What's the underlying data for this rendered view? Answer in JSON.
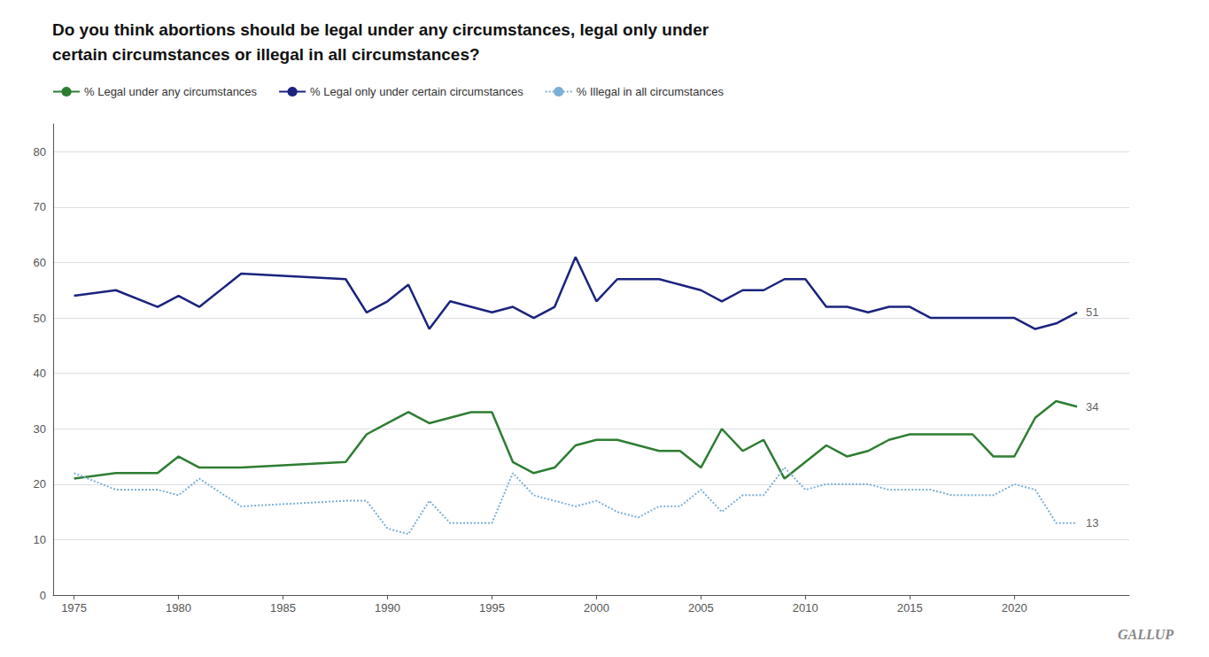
{
  "chart_data": {
    "type": "line",
    "title": "Do you think abortions should be legal under any circumstances, legal only under\ncertain circumstances or illegal in all circumstances?",
    "x": [
      1975,
      1977,
      1979,
      1980,
      1981,
      1983,
      1988,
      1989,
      1990,
      1991,
      1992,
      1993,
      1994,
      1995,
      1996,
      1997,
      1998,
      1999,
      2000,
      2001,
      2002,
      2003,
      2004,
      2005,
      2006,
      2007,
      2008,
      2009,
      2010,
      2011,
      2012,
      2013,
      2014,
      2015,
      2016,
      2017,
      2018,
      2019,
      2020,
      2021,
      2022,
      2023
    ],
    "series": [
      {
        "name": "% Legal under any circumstances",
        "color": "#2e7d32",
        "line_style": "solid",
        "values": [
          21,
          22,
          22,
          25,
          23,
          23,
          24,
          29,
          31,
          33,
          31,
          32,
          33,
          33,
          24,
          22,
          23,
          27,
          28,
          28,
          27,
          26,
          26,
          23,
          30,
          26,
          28,
          21,
          24,
          27,
          25,
          26,
          28,
          29,
          29,
          29,
          29,
          25,
          25,
          32,
          35,
          34
        ]
      },
      {
        "name": "% Legal only under certain circumstances",
        "color": "#1a237e",
        "line_style": "solid",
        "values": [
          54,
          55,
          52,
          54,
          52,
          58,
          57,
          51,
          53,
          56,
          48,
          53,
          52,
          51,
          52,
          50,
          52,
          61,
          53,
          57,
          57,
          57,
          56,
          55,
          53,
          55,
          55,
          57,
          57,
          52,
          52,
          51,
          52,
          52,
          50,
          50,
          50,
          50,
          50,
          48,
          49,
          51
        ]
      },
      {
        "name": "% Illegal in all circumstances",
        "color": "#7ab0d4",
        "line_style": "dotted",
        "values": [
          22,
          19,
          19,
          18,
          21,
          16,
          17,
          17,
          12,
          11,
          17,
          13,
          13,
          13,
          22,
          18,
          17,
          16,
          17,
          15,
          14,
          16,
          16,
          19,
          15,
          18,
          18,
          23,
          19,
          20,
          20,
          20,
          19,
          19,
          19,
          18,
          18,
          18,
          20,
          19,
          13,
          13
        ]
      }
    ],
    "annotations": [
      {
        "text": "34",
        "x": 2023,
        "y": 34
      },
      {
        "text": "51",
        "x": 2023,
        "y": 51
      },
      {
        "text": "13",
        "x": 2023,
        "y": 13
      },
      {
        "text": "GALLUP"
      }
    ],
    "xlim": [
      1974,
      2025.5
    ],
    "xticks": [
      1975,
      1980,
      1985,
      1990,
      1995,
      2000,
      2005,
      2010,
      2015,
      2020
    ],
    "ylim": [
      0,
      85
    ],
    "yticks": [
      0,
      10,
      20,
      30,
      40,
      50,
      60,
      70,
      80
    ],
    "grid": true,
    "legend": "upper left"
  }
}
